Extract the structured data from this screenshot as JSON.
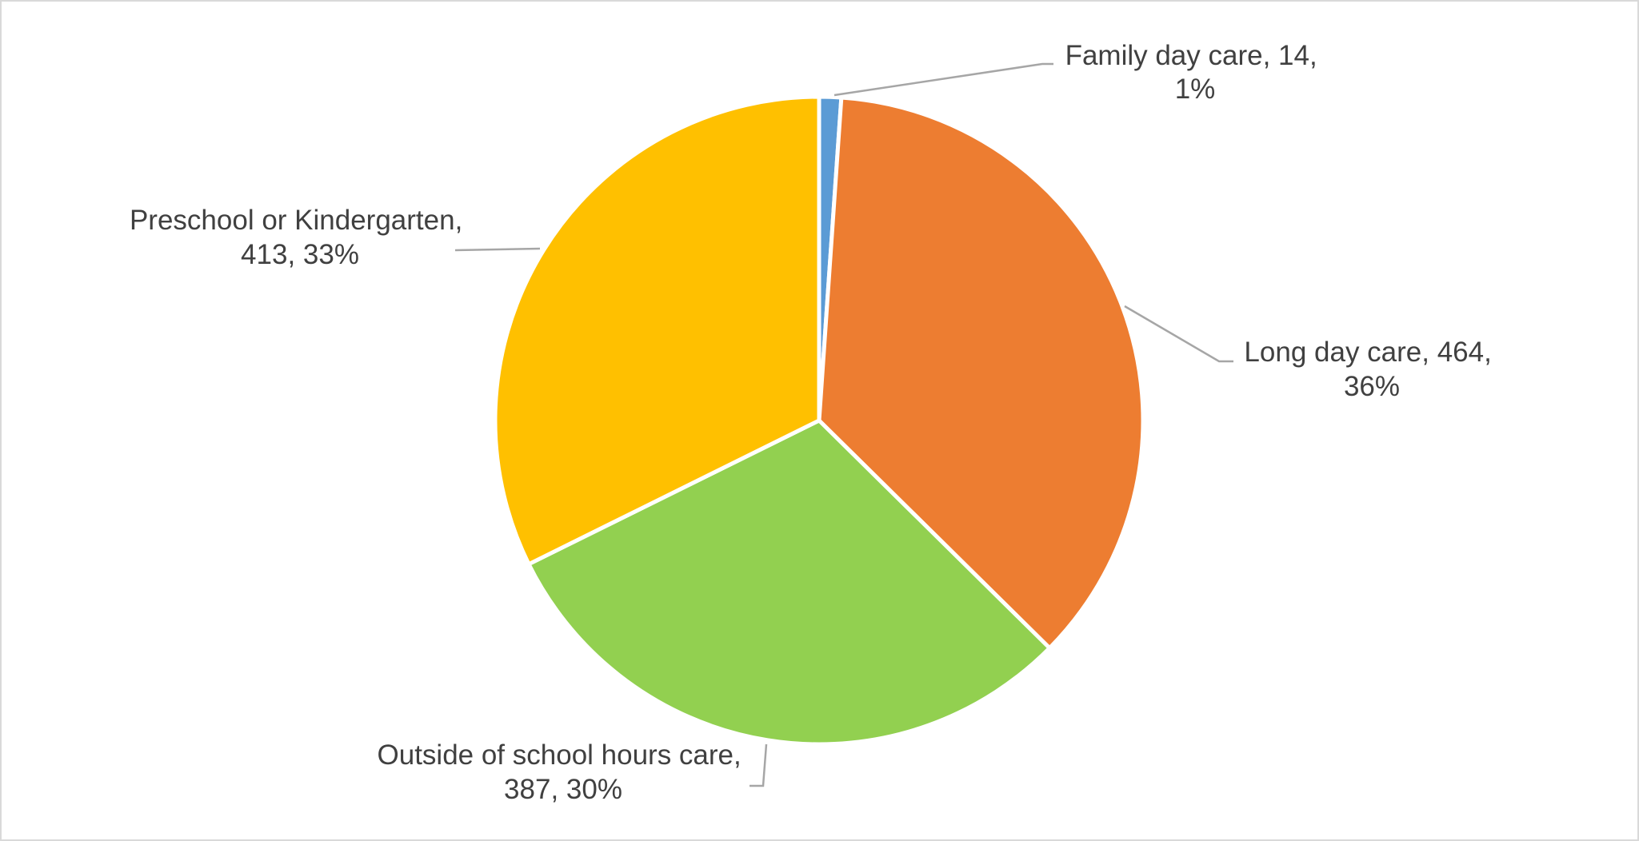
{
  "chart_data": {
    "type": "pie",
    "title": "",
    "start_angle_deg": 0,
    "direction": "clockwise",
    "slices": [
      {
        "name": "Family day care",
        "value": 14,
        "percent": "1%",
        "color": "#5B9BD5",
        "label_lines": [
          "Family day care, 14,",
          "1%"
        ]
      },
      {
        "name": "Long day care",
        "value": 464,
        "percent": "36%",
        "color": "#ED7D31",
        "label_lines": [
          "Long day care, 464,",
          "36%"
        ]
      },
      {
        "name": "Outside of school hours care",
        "value": 387,
        "percent": "30%",
        "color": "#92D050",
        "label_lines": [
          "Outside of school hours care,",
          "387, 30%"
        ]
      },
      {
        "name": "Preschool or Kindergarten",
        "value": 413,
        "percent": "33%",
        "color": "#FFC000",
        "label_lines": [
          "Preschool or Kindergarten,",
          "413, 33%"
        ]
      }
    ],
    "data_labels": "category, value, percentage",
    "leader_lines": true,
    "legend": "none"
  }
}
